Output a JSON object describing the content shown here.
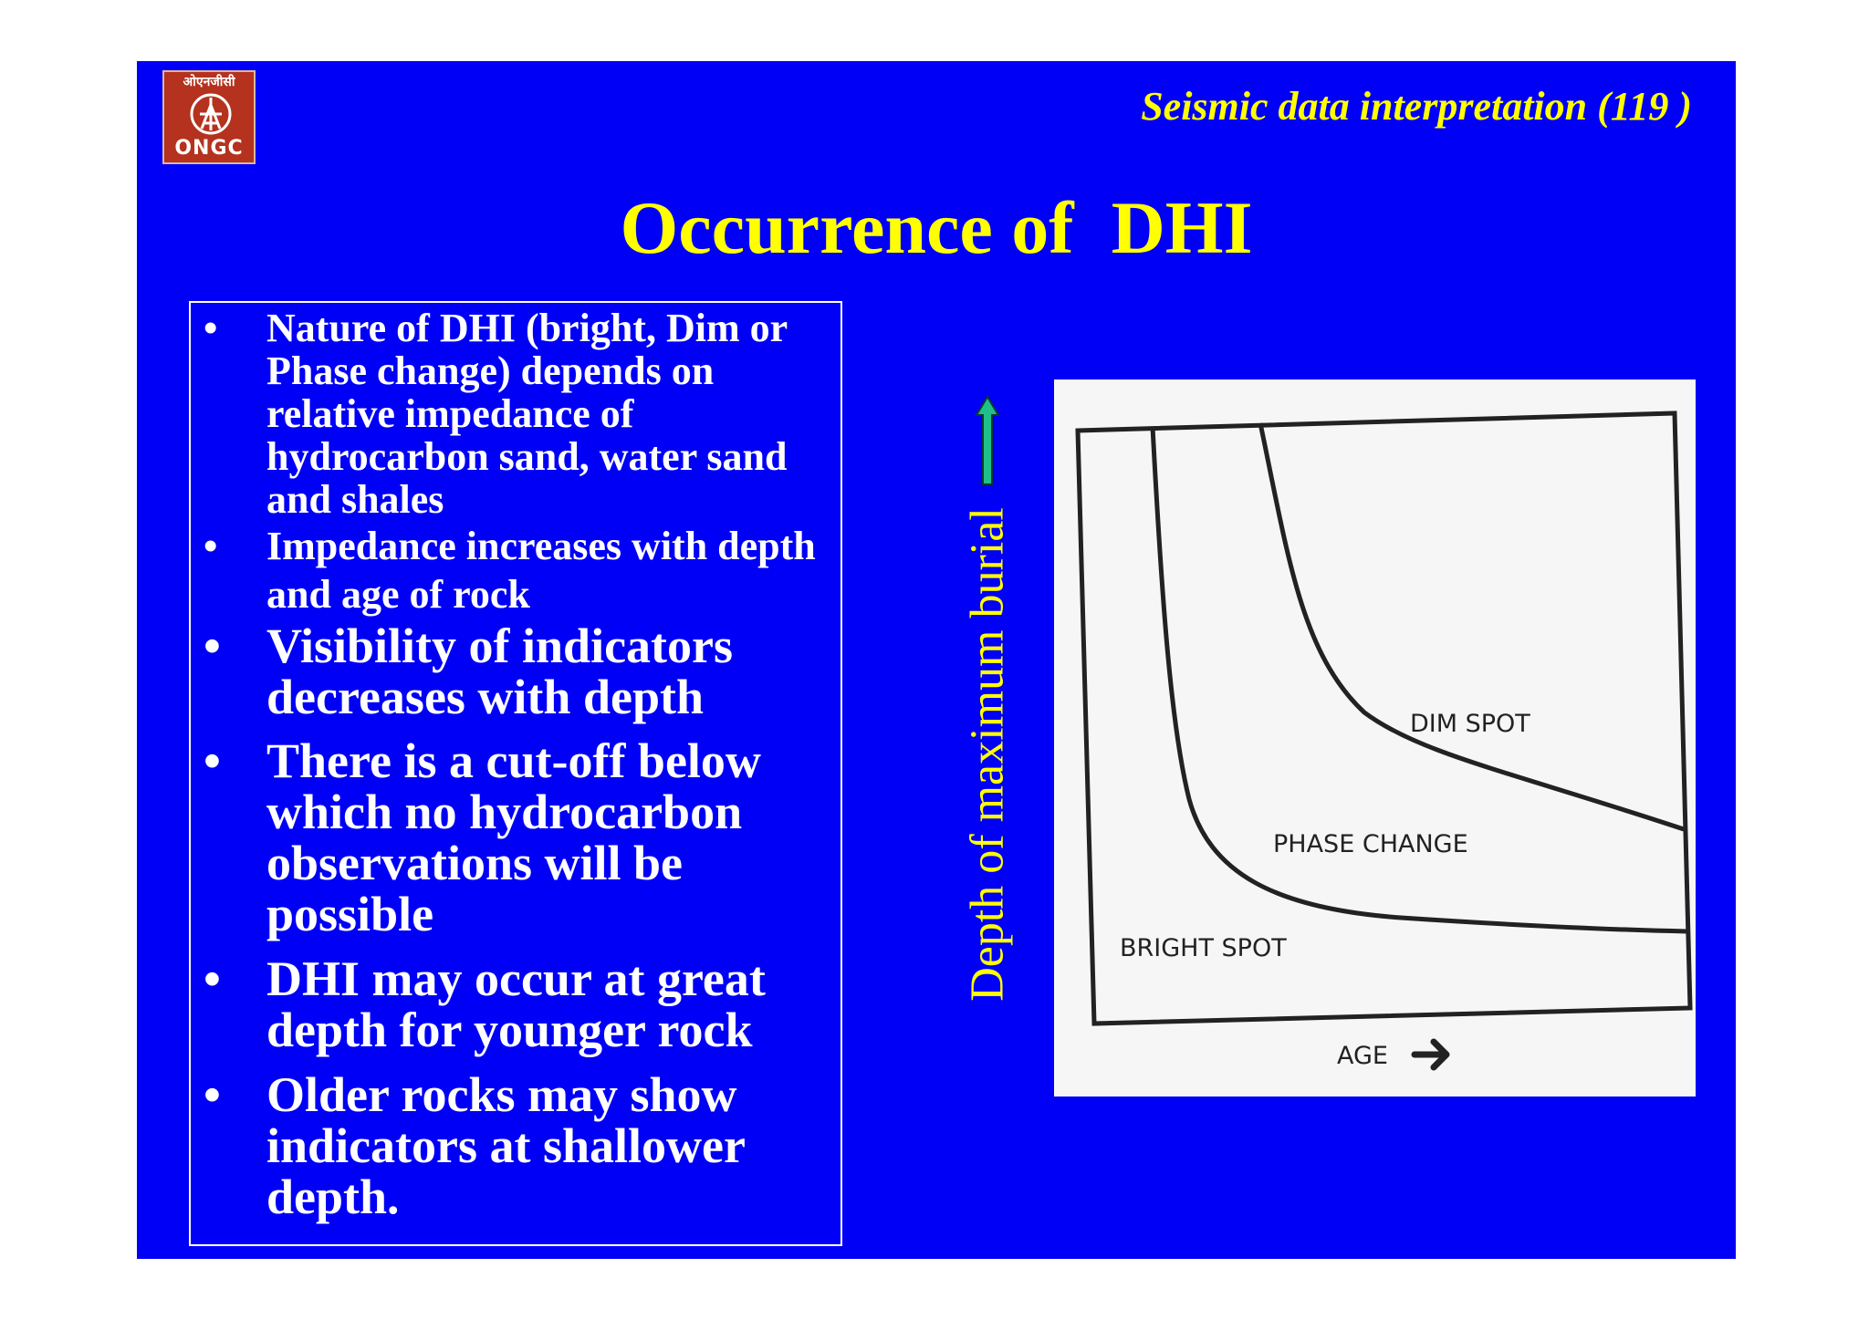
{
  "logo": {
    "hindi": "ओएनजीसी",
    "text": "ONGC"
  },
  "header": {
    "title": "Seismic data interpretation (119 )"
  },
  "slide": {
    "title": "Occurrence of  DHI",
    "bullet_symbol": "•",
    "bullets": [
      "Nature of DHI (bright, Dim or Phase change) depends on relative impedance of hydrocarbon sand, water sand and shales",
      "Impedance increases with depth and age of rock",
      "Visibility of indicators decreases with depth",
      "There is a cut-off below which no hydrocarbon observations will be possible",
      "DHI may occur at great depth for younger rock",
      "Older rocks may show indicators at shallower depth."
    ]
  },
  "figure": {
    "side_label": "Depth of maximum burial",
    "region_labels": {
      "dim_spot": "DIM SPOT",
      "phase_change": "PHASE CHANGE",
      "bright_spot": "BRIGHT SPOT"
    },
    "x_axis_label": "AGE",
    "arrow_color": "#1fbf8a"
  }
}
